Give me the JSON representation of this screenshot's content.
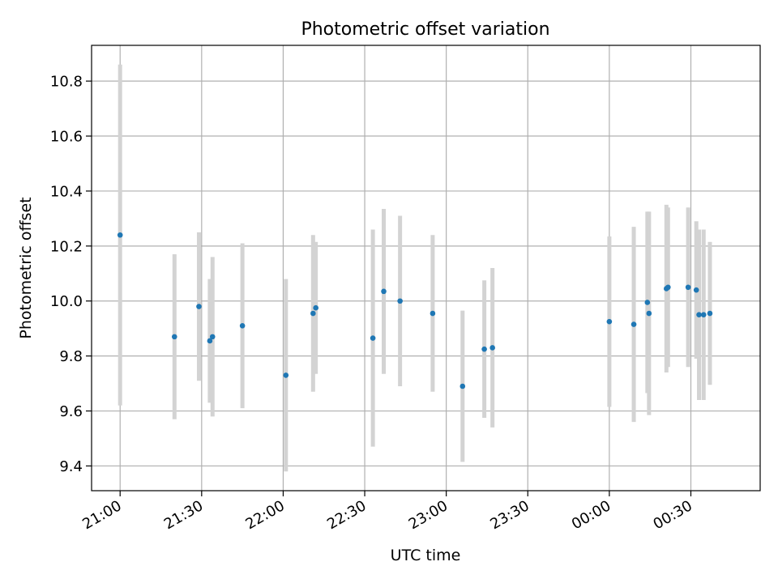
{
  "chart_data": {
    "type": "scatter",
    "title": "Photometric offset variation",
    "xlabel": "UTC time",
    "ylabel": "Photometric offset",
    "xlim": [
      "21:00",
      "00:45"
    ],
    "x_ticks": [
      "21:00",
      "21:30",
      "22:00",
      "22:30",
      "23:00",
      "23:30",
      "00:00",
      "00:30"
    ],
    "ylim": [
      9.31,
      10.93
    ],
    "y_ticks": [
      "9.4",
      "9.6",
      "9.8",
      "10.0",
      "10.2",
      "10.4",
      "10.6",
      "10.8"
    ],
    "grid": true,
    "colors": {
      "marker": "#1f77b4",
      "errorbar": "#d3d3d3",
      "grid": "#b0b0b0"
    },
    "points": [
      {
        "t": "21:00",
        "y": 10.24,
        "err": 0.62
      },
      {
        "t": "21:20",
        "y": 9.87,
        "err": 0.3
      },
      {
        "t": "21:29",
        "y": 9.98,
        "err": 0.27
      },
      {
        "t": "21:33",
        "y": 9.855,
        "err": 0.225
      },
      {
        "t": "21:34",
        "y": 9.87,
        "err": 0.29
      },
      {
        "t": "21:45",
        "y": 9.91,
        "err": 0.3
      },
      {
        "t": "22:01",
        "y": 9.73,
        "err": 0.35
      },
      {
        "t": "22:11",
        "y": 9.955,
        "err": 0.285
      },
      {
        "t": "22:12",
        "y": 9.975,
        "err": 0.24
      },
      {
        "t": "22:33",
        "y": 9.865,
        "err": 0.395
      },
      {
        "t": "22:37",
        "y": 10.035,
        "err": 0.3
      },
      {
        "t": "22:43",
        "y": 10.0,
        "err": 0.31
      },
      {
        "t": "22:55",
        "y": 9.955,
        "err": 0.285
      },
      {
        "t": "23:06",
        "y": 9.69,
        "err": 0.275
      },
      {
        "t": "23:14",
        "y": 9.825,
        "err": 0.25
      },
      {
        "t": "23:17",
        "y": 9.83,
        "err": 0.29
      },
      {
        "t": "00:00",
        "y": 9.925,
        "err": 0.31
      },
      {
        "t": "00:09",
        "y": 9.915,
        "err": 0.355
      },
      {
        "t": "00:14",
        "y": 9.995,
        "err": 0.33
      },
      {
        "t": "00:14",
        "y": 9.955,
        "err": 0.37
      },
      {
        "t": "00:21",
        "y": 10.045,
        "err": 0.305
      },
      {
        "t": "00:21",
        "y": 10.05,
        "err": 0.29
      },
      {
        "t": "00:29",
        "y": 10.05,
        "err": 0.29
      },
      {
        "t": "00:32",
        "y": 10.04,
        "err": 0.25
      },
      {
        "t": "00:33",
        "y": 9.95,
        "err": 0.31
      },
      {
        "t": "00:34",
        "y": 9.95,
        "err": 0.31
      },
      {
        "t": "00:37",
        "y": 9.955,
        "err": 0.26
      }
    ]
  }
}
